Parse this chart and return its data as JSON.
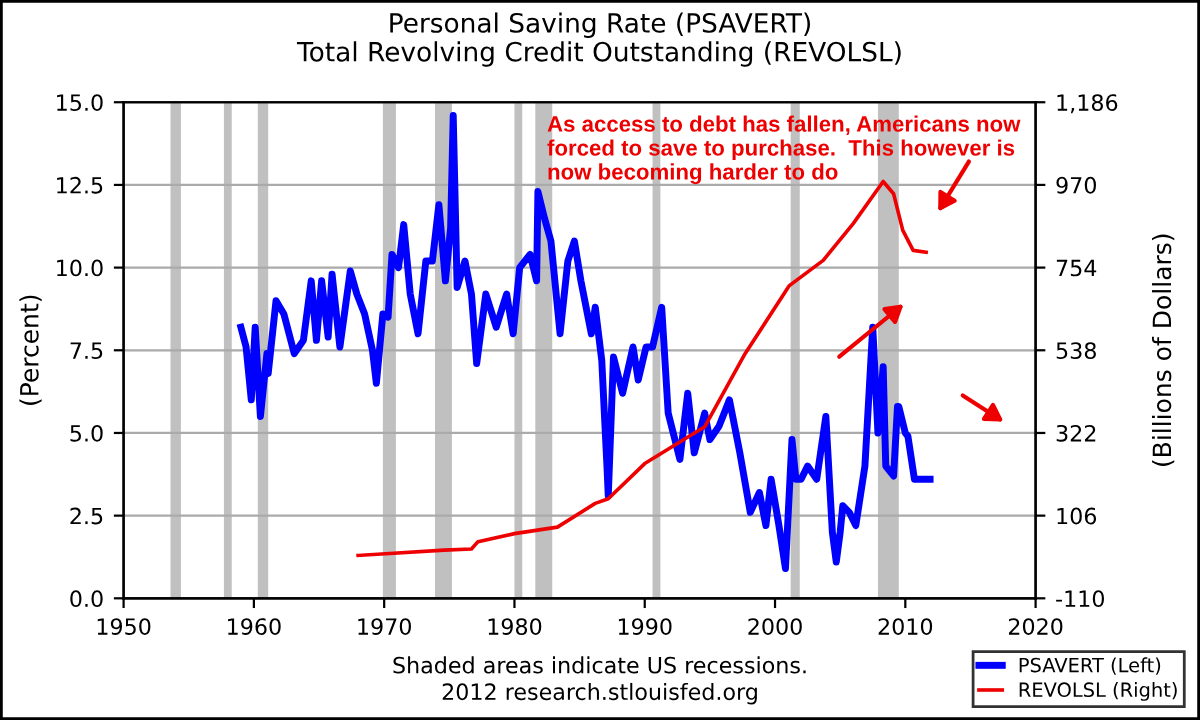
{
  "chart_data": {
    "type": "line",
    "title": "Personal Saving Rate (PSAVERT)",
    "subtitle": "Total Revolving Credit Outstanding (REVOLSL)",
    "ylabel": "(Percent)",
    "y2label": "(Billions of Dollars)",
    "annotations": [
      {
        "text": "As access to debt has fallen, Americans now\nforced to save to purchase.  This however is\nnow becoming harder to do",
        "x": 1982.5,
        "y": 14.6
      },
      "Shaded areas indicate US recessions.\n2012 research.stlouisfed.org"
    ],
    "series": [
      {
        "name": "PSAVERT (Left)",
        "color": "#0000ff",
        "axis": "y",
        "x": [
          1959.0,
          1959.4,
          1959.8,
          1960.1,
          1960.5,
          1961.0,
          1961.1,
          1961.7,
          1962.3,
          1963.1,
          1963.8,
          1964.4,
          1964.8,
          1965.2,
          1965.7,
          1966.0,
          1966.6,
          1967.4,
          1967.9,
          1968.5,
          1969.1,
          1969.4,
          1969.9,
          1970.3,
          1970.6,
          1971.1,
          1971.5,
          1972.0,
          1972.6,
          1973.2,
          1973.7,
          1974.2,
          1974.7,
          1975.1,
          1975.3,
          1975.6,
          1976.2,
          1976.7,
          1977.1,
          1977.8,
          1978.6,
          1979.4,
          1979.9,
          1980.4,
          1981.2,
          1981.7,
          1981.8,
          1982.3,
          1982.8,
          1983.5,
          1984.1,
          1984.6,
          1985.1,
          1985.9,
          1986.2,
          1986.7,
          1987.1,
          1987.2,
          1987.6,
          1988.3,
          1989.1,
          1989.5,
          1990.1,
          1990.6,
          1991.3,
          1991.8,
          1992.7,
          1993.3,
          1993.8,
          1994.6,
          1995.0,
          1995.7,
          1996.5,
          1997.3,
          1998.1,
          1998.8,
          1999.3,
          1999.7,
          2000.3,
          2000.8,
          2001.3,
          2001.6,
          2002.0,
          2002.5,
          2003.2,
          2003.9,
          2004.4,
          2004.7,
          2005.0,
          2005.2,
          2005.7,
          2006.2,
          2006.9,
          2007.5,
          2007.9,
          2008.3,
          2008.5,
          2009.1,
          2009.4,
          2009.5,
          2010.0,
          2010.2,
          2010.7,
          2011.0,
          2011.4,
          2011.9
        ],
        "values": [
          8.2,
          7.6,
          6.0,
          8.2,
          5.5,
          7.4,
          6.8,
          9.0,
          8.6,
          7.4,
          7.8,
          9.6,
          7.8,
          9.6,
          7.9,
          9.8,
          7.6,
          9.9,
          9.2,
          8.6,
          7.5,
          6.5,
          8.6,
          8.5,
          10.4,
          10.0,
          11.3,
          9.2,
          8.0,
          10.2,
          10.2,
          11.9,
          9.6,
          11.2,
          14.6,
          9.4,
          10.2,
          9.2,
          7.1,
          9.2,
          8.2,
          9.2,
          8.0,
          10.0,
          10.4,
          9.6,
          12.3,
          11.5,
          10.8,
          8.0,
          10.2,
          10.8,
          9.6,
          8.0,
          8.8,
          7.2,
          4.0,
          3.1,
          7.3,
          6.2,
          7.6,
          6.6,
          7.6,
          7.6,
          8.8,
          5.6,
          4.2,
          6.2,
          4.4,
          5.6,
          4.8,
          5.2,
          6.0,
          4.4,
          2.6,
          3.2,
          2.2,
          3.6,
          2.2,
          0.9,
          4.8,
          3.6,
          3.6,
          4.0,
          3.6,
          5.5,
          2.0,
          1.1,
          2.0,
          2.8,
          2.6,
          2.2,
          4.0,
          8.2,
          5.0,
          7.0,
          4.0,
          3.7,
          5.8,
          5.8,
          5.0,
          4.9,
          3.6,
          3.6,
          3.6,
          3.6
        ]
      },
      {
        "name": "REVOLSL (Right)",
        "color": "#ee0000",
        "axis": "y2",
        "x": [
          1968.0,
          1974.6,
          1976.7,
          1977.2,
          1980.0,
          1983.3,
          1986.2,
          1987.2,
          1990.0,
          1994.6,
          1997.7,
          2001.1,
          2003.7,
          2006.0,
          2008.3,
          2009.1,
          2009.8,
          2010.6,
          2011.6
        ],
        "values": [
          2,
          16,
          19,
          38,
          59,
          76,
          138,
          150,
          242,
          338,
          529,
          707,
          773,
          869,
          979,
          947,
          852,
          799,
          794
        ]
      }
    ],
    "xlim": [
      1950,
      2020
    ],
    "xticks": [
      1950,
      1960,
      1970,
      1980,
      1990,
      2000,
      2010,
      2020
    ],
    "ylim": [
      0,
      15
    ],
    "yticks": [
      {
        "value": 0,
        "label": "0.0"
      },
      {
        "value": 2.5,
        "label": "2.5"
      },
      {
        "value": 5,
        "label": "5.0"
      },
      {
        "value": 7.5,
        "label": "7.5"
      },
      {
        "value": 10,
        "label": "10.0"
      },
      {
        "value": 12.5,
        "label": "12.5"
      },
      {
        "value": 15,
        "label": "15.0"
      }
    ],
    "y2lim": [
      -110,
      1186
    ],
    "y2ticks": [
      -110,
      106,
      322,
      538,
      754,
      970,
      {
        "value": 1186,
        "label": "1,186"
      }
    ],
    "bands": [
      {
        "axis": "x",
        "from": 1953.6,
        "to": 1954.4,
        "color": "#c0c0c0"
      },
      {
        "axis": "x",
        "from": 1957.7,
        "to": 1958.3,
        "color": "#c0c0c0"
      },
      {
        "axis": "x",
        "from": 1960.3,
        "to": 1961.1,
        "color": "#c0c0c0"
      },
      {
        "axis": "x",
        "from": 1969.9,
        "to": 1970.9,
        "color": "#c0c0c0"
      },
      {
        "axis": "x",
        "from": 1973.9,
        "to": 1975.2,
        "color": "#c0c0c0"
      },
      {
        "axis": "x",
        "from": 1980.0,
        "to": 1980.6,
        "color": "#c0c0c0"
      },
      {
        "axis": "x",
        "from": 1981.6,
        "to": 1982.9,
        "color": "#c0c0c0"
      },
      {
        "axis": "x",
        "from": 1990.6,
        "to": 1991.2,
        "color": "#c0c0c0"
      },
      {
        "axis": "x",
        "from": 2001.2,
        "to": 2001.9,
        "color": "#c0c0c0"
      },
      {
        "axis": "x",
        "from": 2007.9,
        "to": 2009.5,
        "color": "#c0c0c0"
      }
    ],
    "grid": "y",
    "legend": "bottom right",
    "marker": "none",
    "line_style": "solid"
  }
}
